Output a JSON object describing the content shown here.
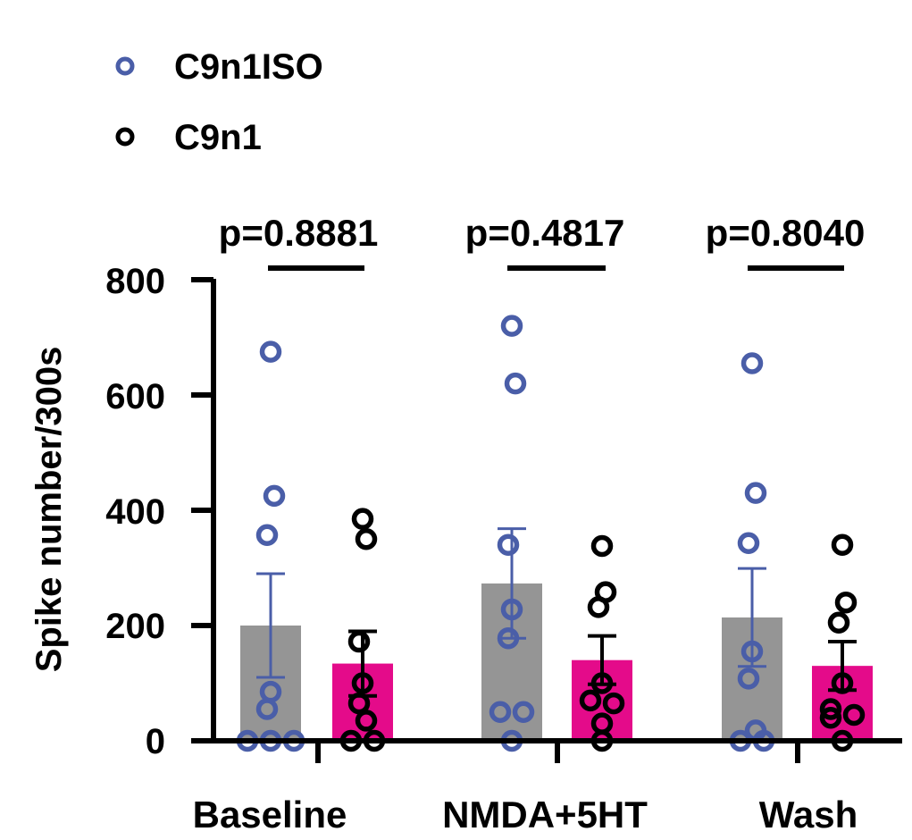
{
  "chart_data": {
    "type": "bar",
    "categories": [
      "Baseline",
      "NMDA+5HT",
      "Wash"
    ],
    "ylabel": "Spike number/300s",
    "ylim": [
      0,
      800
    ],
    "yticks": [
      0,
      200,
      400,
      600,
      800
    ],
    "legend": {
      "placement": "top-left",
      "entries": [
        {
          "label": "C9n1ISO",
          "color": "#4a5ea8",
          "marker": "open-circle"
        },
        {
          "label": "C9n1",
          "color": "#000000",
          "marker": "open-circle"
        }
      ]
    },
    "series": [
      {
        "name": "C9n1ISO",
        "bar_color": "#959595",
        "point_color": "#4a5ea8",
        "mean": [
          200,
          273,
          214
        ],
        "sem": [
          90,
          95,
          85
        ],
        "points": [
          [
            675,
            425,
            357,
            85,
            55,
            0,
            0,
            0
          ],
          [
            720,
            620,
            340,
            228,
            178,
            50,
            50,
            0
          ],
          [
            655,
            430,
            343,
            155,
            108,
            18,
            0,
            0
          ]
        ]
      },
      {
        "name": "C9n1",
        "bar_color": "#e40b8a",
        "point_color": "#000000",
        "mean": [
          134,
          140,
          130
        ],
        "sem": [
          56,
          42,
          42
        ],
        "points": [
          [
            385,
            350,
            172,
            100,
            65,
            35,
            0,
            0
          ],
          [
            338,
            258,
            232,
            100,
            70,
            65,
            30,
            0
          ],
          [
            340,
            240,
            205,
            100,
            55,
            45,
            40,
            0
          ]
        ]
      }
    ],
    "comparisons": [
      "p=0.8881",
      "p=0.4817",
      "p=0.8040"
    ]
  }
}
